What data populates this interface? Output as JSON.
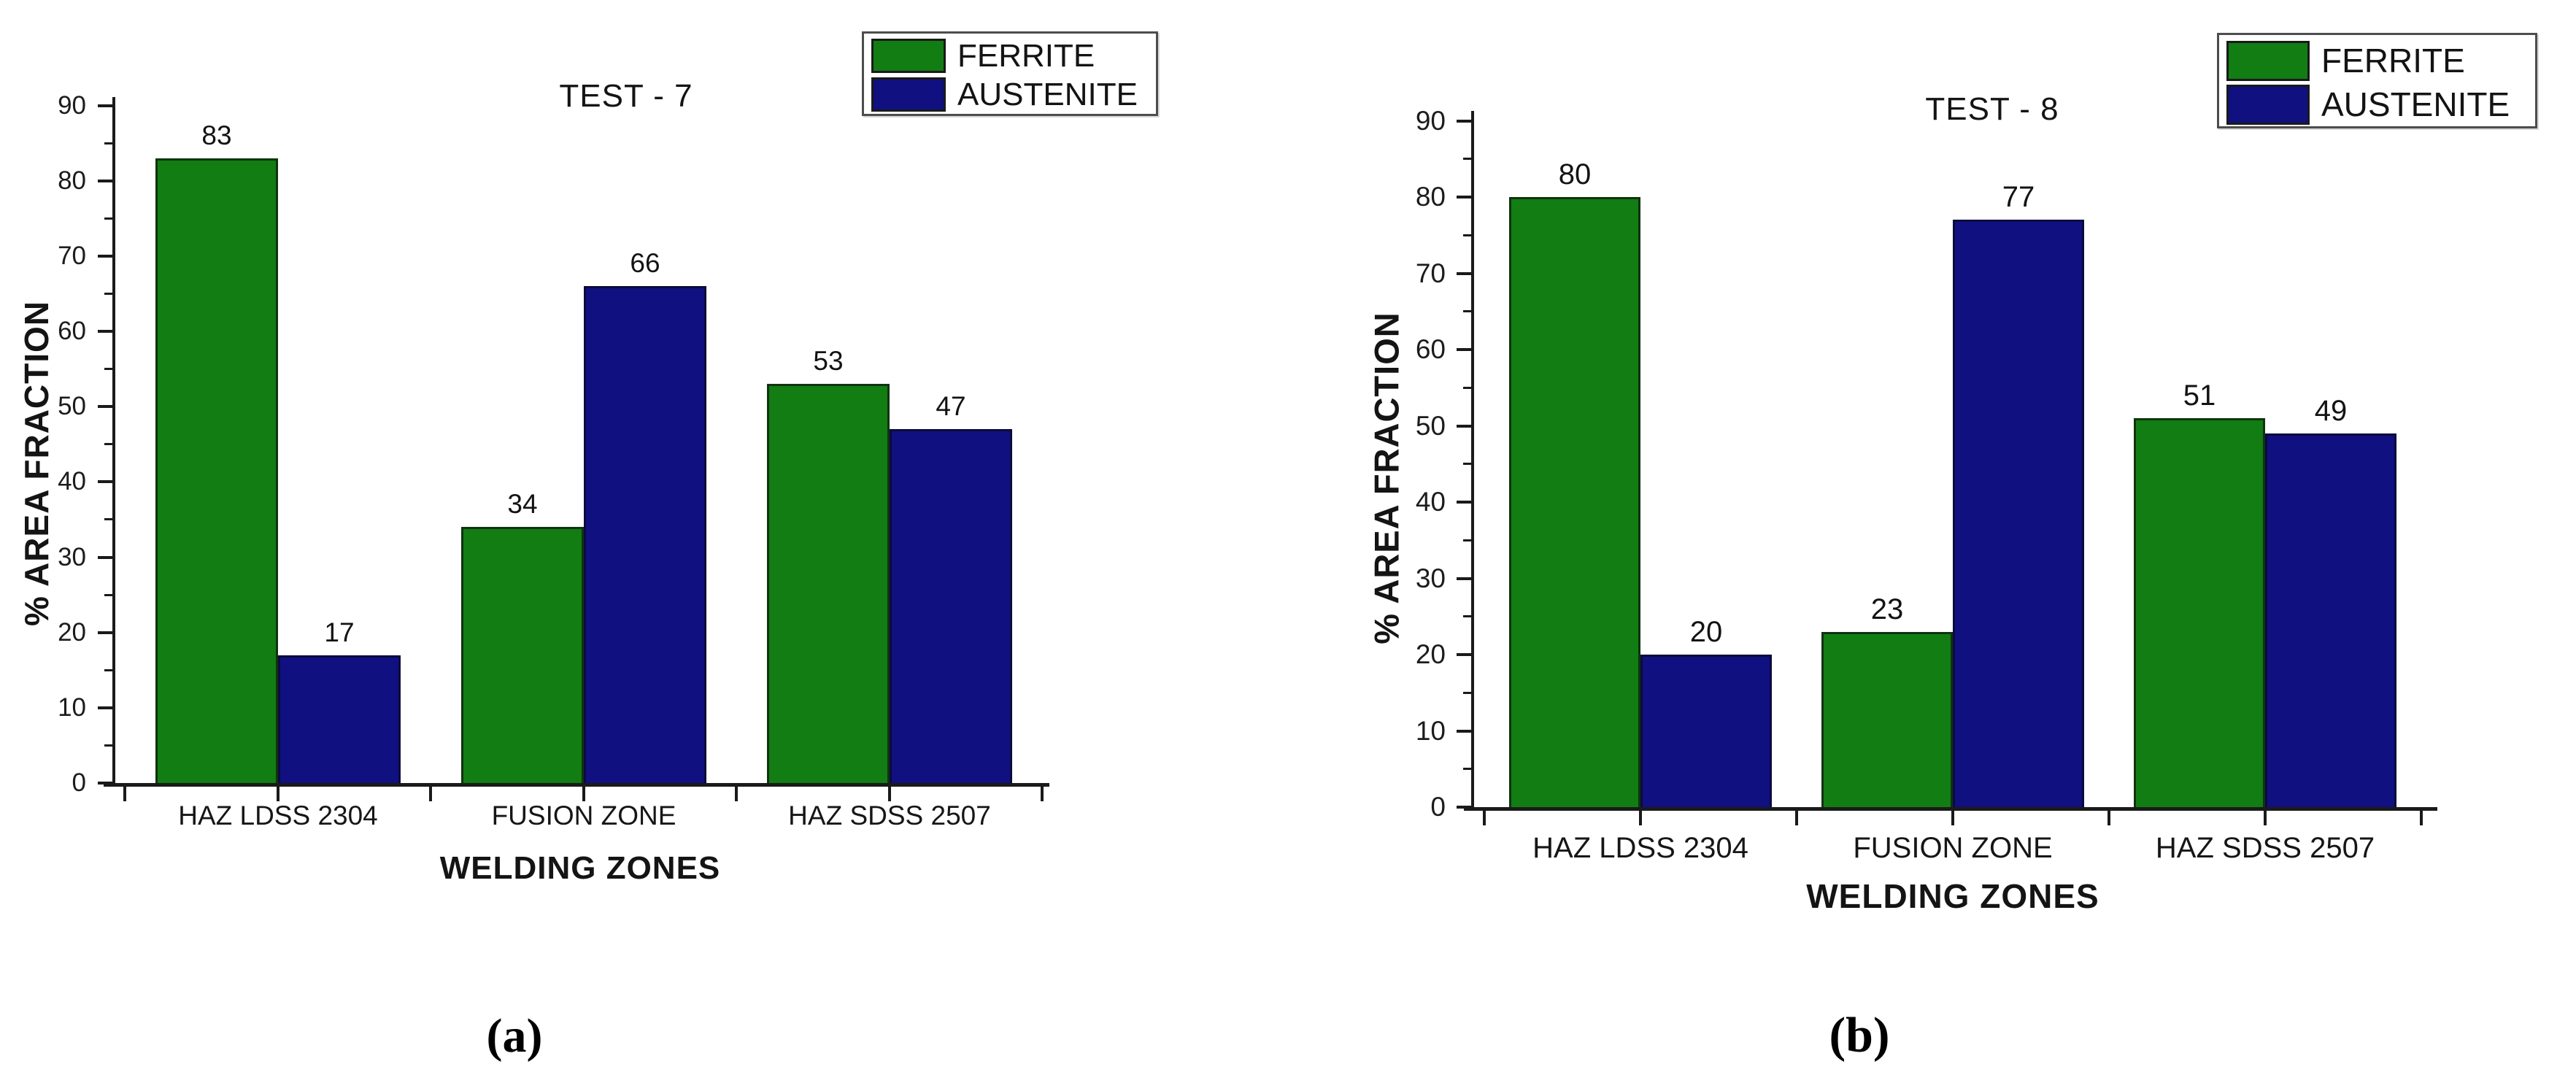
{
  "figure": {
    "description": "Two grouped bar charts comparing ferrite and austenite percentage area fraction across welding zones",
    "background": "#ffffff",
    "colors": {
      "ferrite_green": "#117d13",
      "ferrite_border": "#103310",
      "austenite_blue": "#101080",
      "austenite_border": "#0b0b3d",
      "axis": "#1a1a1a",
      "text": "#1b1b1b",
      "legend_border": "#4d4d4d"
    }
  },
  "chart_data": [
    {
      "type": "bar",
      "title": "TEST - 7",
      "caption": "(a)",
      "xlabel": "WELDING ZONES",
      "ylabel": "% AREA FRACTION",
      "categories": [
        "HAZ LDSS 2304",
        "FUSION ZONE",
        "HAZ SDSS 2507"
      ],
      "series": [
        {
          "name": "FERRITE",
          "color": "#117d13",
          "values": [
            83,
            34,
            53
          ]
        },
        {
          "name": "AUSTENITE",
          "color": "#101080",
          "values": [
            17,
            66,
            47
          ]
        }
      ],
      "ylim": [
        0,
        90
      ],
      "y_tick_step": 10,
      "y_minor_tick_step": 5,
      "y_tick_labels": [
        "0",
        "10",
        "20",
        "30",
        "40",
        "50",
        "60",
        "70",
        "80",
        "90"
      ],
      "bar_value_labels": [
        [
          "83",
          "34",
          "53"
        ],
        [
          "17",
          "66",
          "47"
        ]
      ],
      "legend": {
        "entries": [
          "FERRITE",
          "AUSTENITE"
        ],
        "position": "top-right"
      },
      "grid": false
    },
    {
      "type": "bar",
      "title": "TEST - 8",
      "caption": "(b)",
      "xlabel": "WELDING ZONES",
      "ylabel": "% AREA FRACTION",
      "categories": [
        "HAZ LDSS 2304",
        "FUSION ZONE",
        "HAZ SDSS 2507"
      ],
      "series": [
        {
          "name": "FERRITE",
          "color": "#117d13",
          "values": [
            80,
            23,
            51
          ]
        },
        {
          "name": "AUSTENITE",
          "color": "#101080",
          "values": [
            20,
            77,
            49
          ]
        }
      ],
      "ylim": [
        0,
        90
      ],
      "y_tick_step": 10,
      "y_minor_tick_step": 5,
      "y_tick_labels": [
        "0",
        "10",
        "20",
        "30",
        "40",
        "50",
        "60",
        "70",
        "80",
        "90"
      ],
      "bar_value_labels": [
        [
          "80",
          "23",
          "51"
        ],
        [
          "20",
          "77",
          "49"
        ]
      ],
      "legend": {
        "entries": [
          "FERRITE",
          "AUSTENITE"
        ],
        "position": "top-right"
      },
      "grid": false
    }
  ]
}
